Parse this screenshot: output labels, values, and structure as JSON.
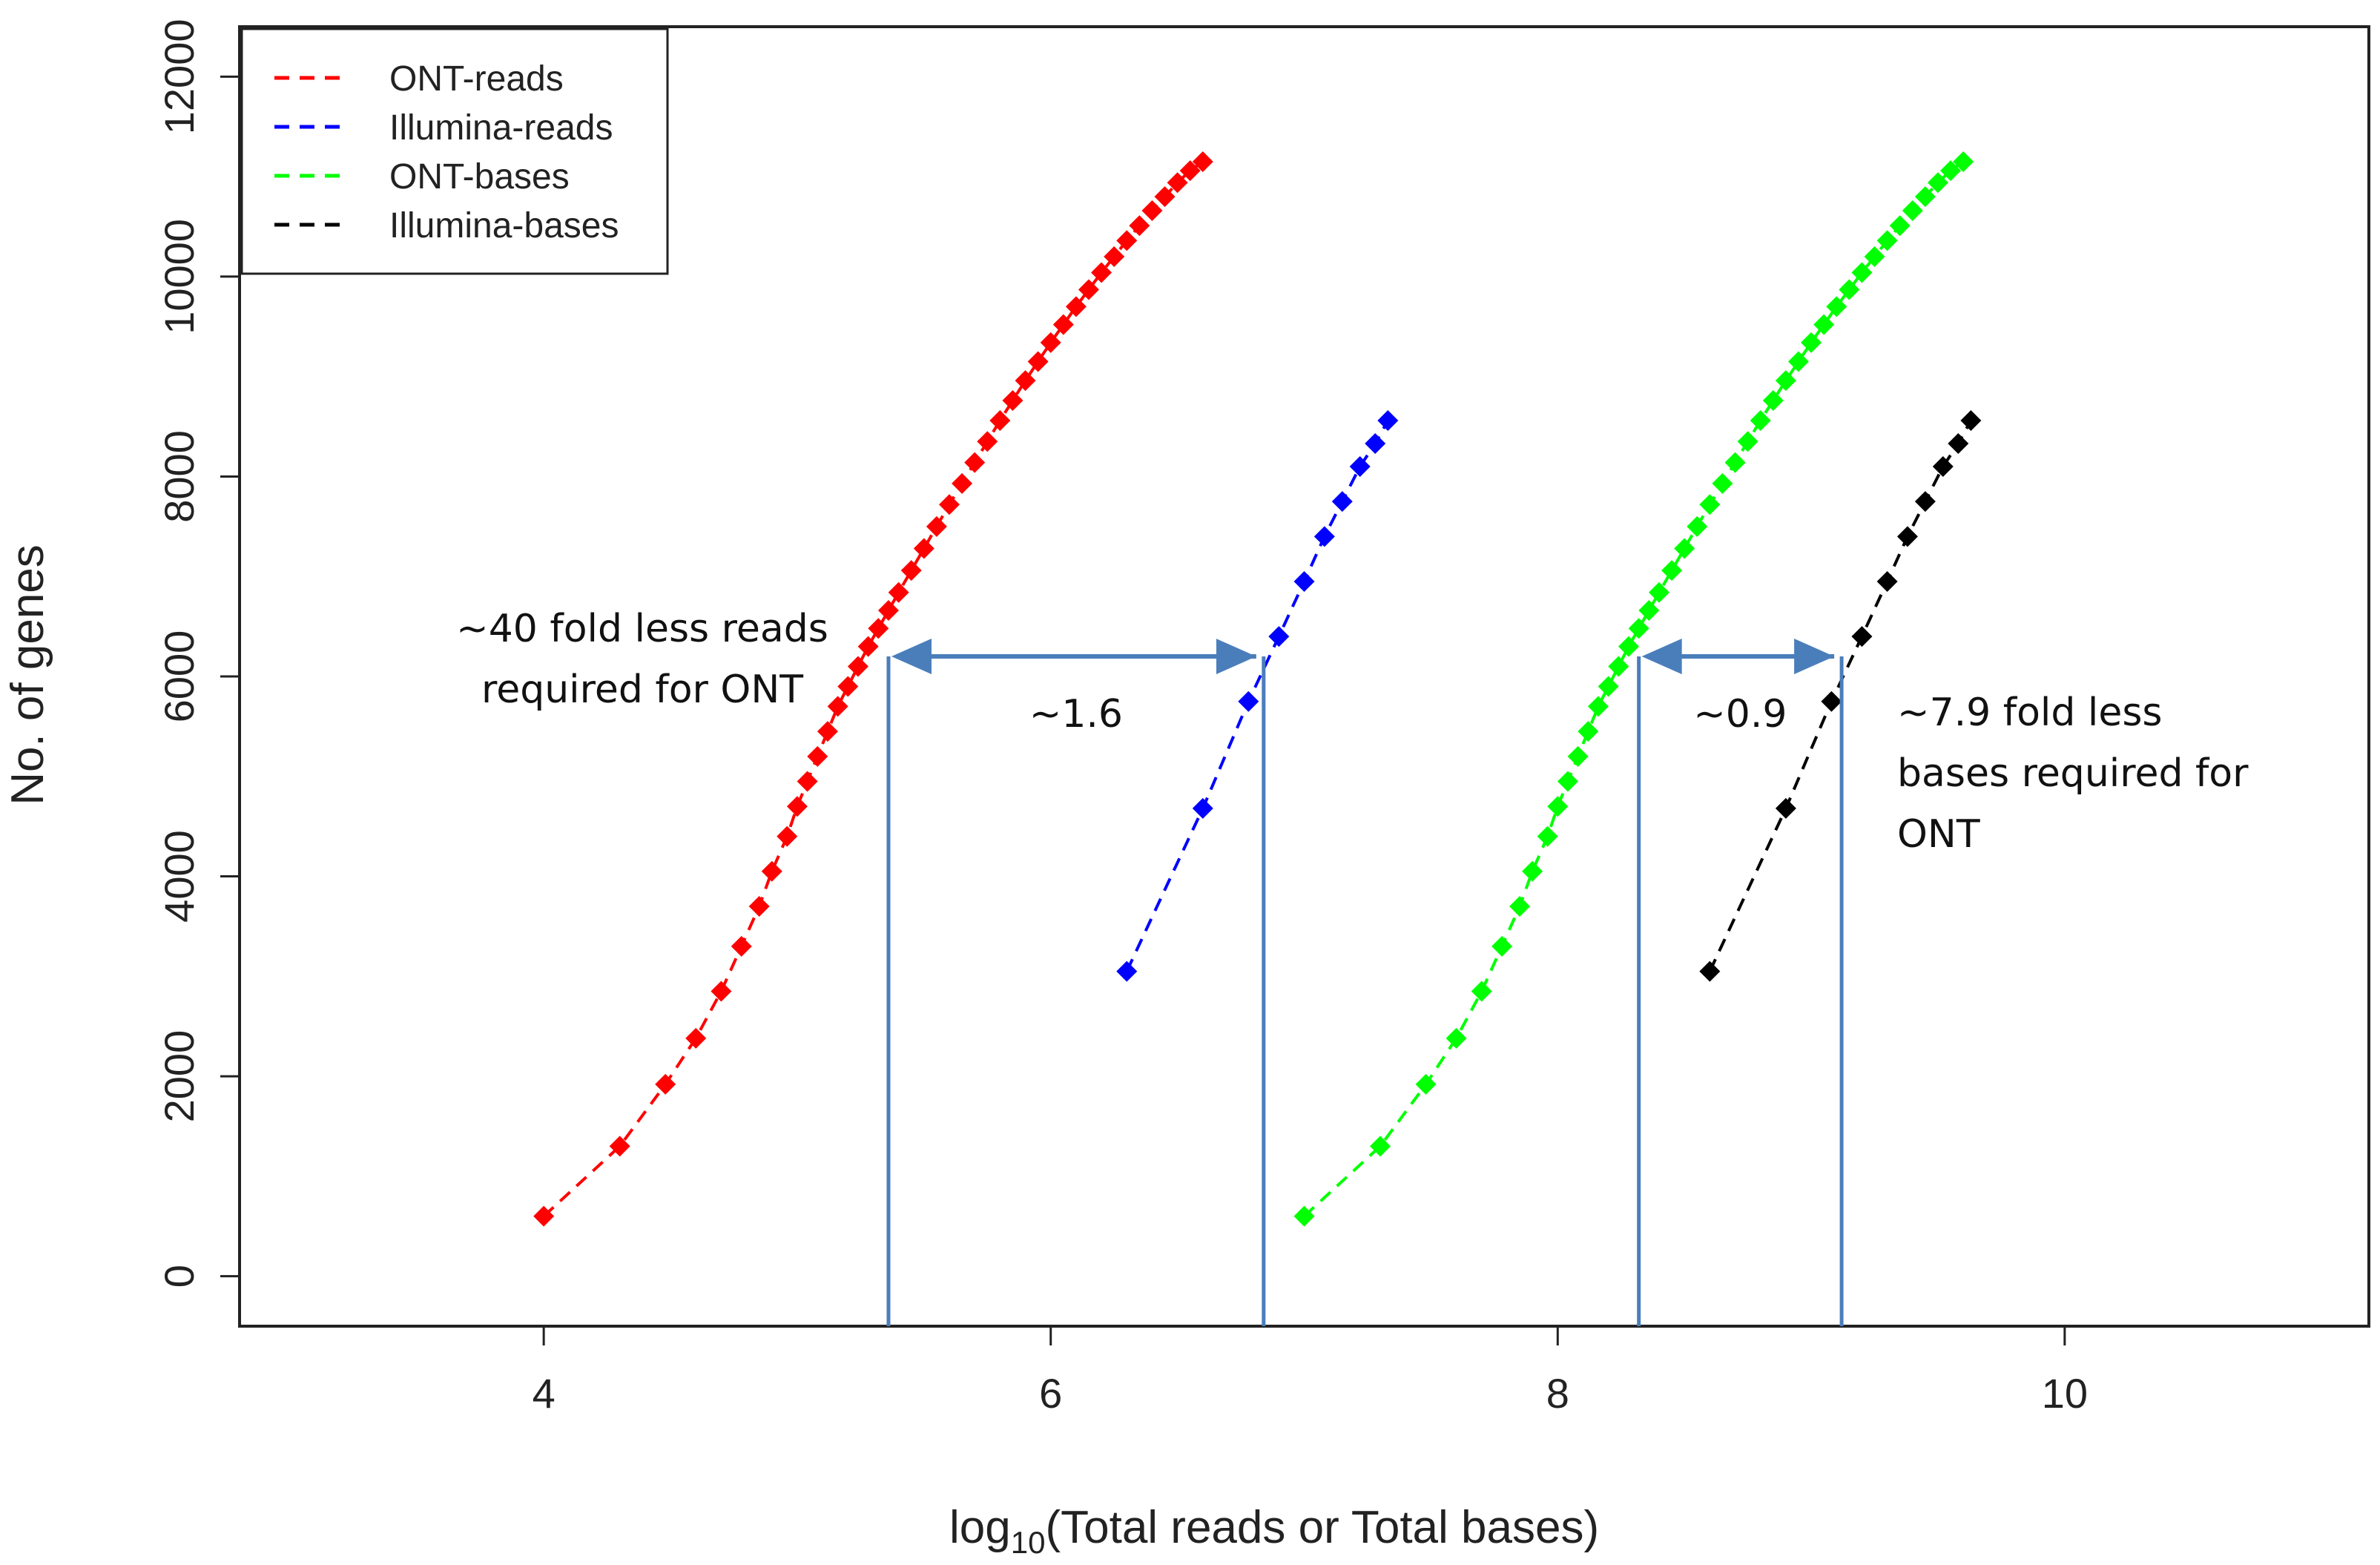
{
  "chart_data": {
    "type": "scatter",
    "xlabel_prefix": "log",
    "xlabel_sub": "10",
    "xlabel_suffix": "(Total reads or Total bases)",
    "ylabel": "No. of genes",
    "xlim": [
      2.8,
      11.2
    ],
    "ylim": [
      -500,
      12500
    ],
    "x_ticks": [
      4,
      6,
      8,
      10
    ],
    "y_ticks": [
      0,
      2000,
      4000,
      6000,
      8000,
      10000,
      12000
    ],
    "grid": false,
    "legend_position": "top-left",
    "series": [
      {
        "name": "ONT-reads",
        "color": "#ff0000",
        "x": [
          4.0,
          4.3,
          4.48,
          4.6,
          4.7,
          4.78,
          4.85,
          4.9,
          4.96,
          5.0,
          5.04,
          5.08,
          5.12,
          5.16,
          5.2,
          5.24,
          5.28,
          5.32,
          5.36,
          5.4,
          5.45,
          5.5,
          5.55,
          5.6,
          5.65,
          5.7,
          5.75,
          5.8,
          5.85,
          5.9,
          5.95,
          6.0,
          6.05,
          6.1,
          6.15,
          6.2,
          6.25,
          6.3,
          6.35,
          6.4,
          6.45,
          6.5,
          6.55,
          6.6
        ],
        "y": [
          600,
          1300,
          1920,
          2380,
          2850,
          3300,
          3700,
          4050,
          4400,
          4700,
          4950,
          5200,
          5450,
          5700,
          5900,
          6100,
          6300,
          6480,
          6660,
          6840,
          7060,
          7280,
          7500,
          7720,
          7930,
          8140,
          8350,
          8560,
          8760,
          8960,
          9150,
          9340,
          9520,
          9700,
          9870,
          10040,
          10200,
          10360,
          10510,
          10660,
          10800,
          10940,
          11060,
          11150
        ]
      },
      {
        "name": "Illumina-reads",
        "color": "#0000ff",
        "x": [
          6.3,
          6.6,
          6.78,
          6.9,
          7.0,
          7.08,
          7.15,
          7.22,
          7.28,
          7.33
        ],
        "y": [
          3050,
          4680,
          5750,
          6400,
          6950,
          7400,
          7750,
          8100,
          8330,
          8560
        ]
      },
      {
        "name": "ONT-bases",
        "color": "#00ff00",
        "x": [
          7.0,
          7.3,
          7.48,
          7.6,
          7.7,
          7.78,
          7.85,
          7.9,
          7.96,
          8.0,
          8.04,
          8.08,
          8.12,
          8.16,
          8.2,
          8.24,
          8.28,
          8.32,
          8.36,
          8.4,
          8.45,
          8.5,
          8.55,
          8.6,
          8.65,
          8.7,
          8.75,
          8.8,
          8.85,
          8.9,
          8.95,
          9.0,
          9.05,
          9.1,
          9.15,
          9.2,
          9.25,
          9.3,
          9.35,
          9.4,
          9.45,
          9.5,
          9.55,
          9.6
        ],
        "y": [
          600,
          1300,
          1920,
          2380,
          2850,
          3300,
          3700,
          4050,
          4400,
          4700,
          4950,
          5200,
          5450,
          5700,
          5900,
          6100,
          6300,
          6480,
          6660,
          6840,
          7060,
          7280,
          7500,
          7720,
          7930,
          8140,
          8350,
          8560,
          8760,
          8960,
          9150,
          9340,
          9520,
          9700,
          9870,
          10040,
          10200,
          10360,
          10510,
          10660,
          10800,
          10940,
          11060,
          11150
        ]
      },
      {
        "name": "Illumina-bases",
        "color": "#000000",
        "x": [
          8.6,
          8.9,
          9.08,
          9.2,
          9.3,
          9.38,
          9.45,
          9.52,
          9.58,
          9.63
        ],
        "y": [
          3050,
          4680,
          5750,
          6400,
          6950,
          7400,
          7750,
          8100,
          8330,
          8560
        ]
      }
    ],
    "annotations": {
      "color": "#4a7ebb",
      "arrow_y": 6200,
      "reads_bracket": {
        "x1": 5.36,
        "x2": 6.84,
        "label": "~1.6"
      },
      "bases_bracket": {
        "x1": 8.32,
        "x2": 9.12,
        "label": "~0.9"
      },
      "reads_note": [
        "~40 fold less reads",
        "required for ONT"
      ],
      "bases_note": [
        "~7.9 fold less",
        "bases required for",
        "ONT"
      ]
    }
  }
}
